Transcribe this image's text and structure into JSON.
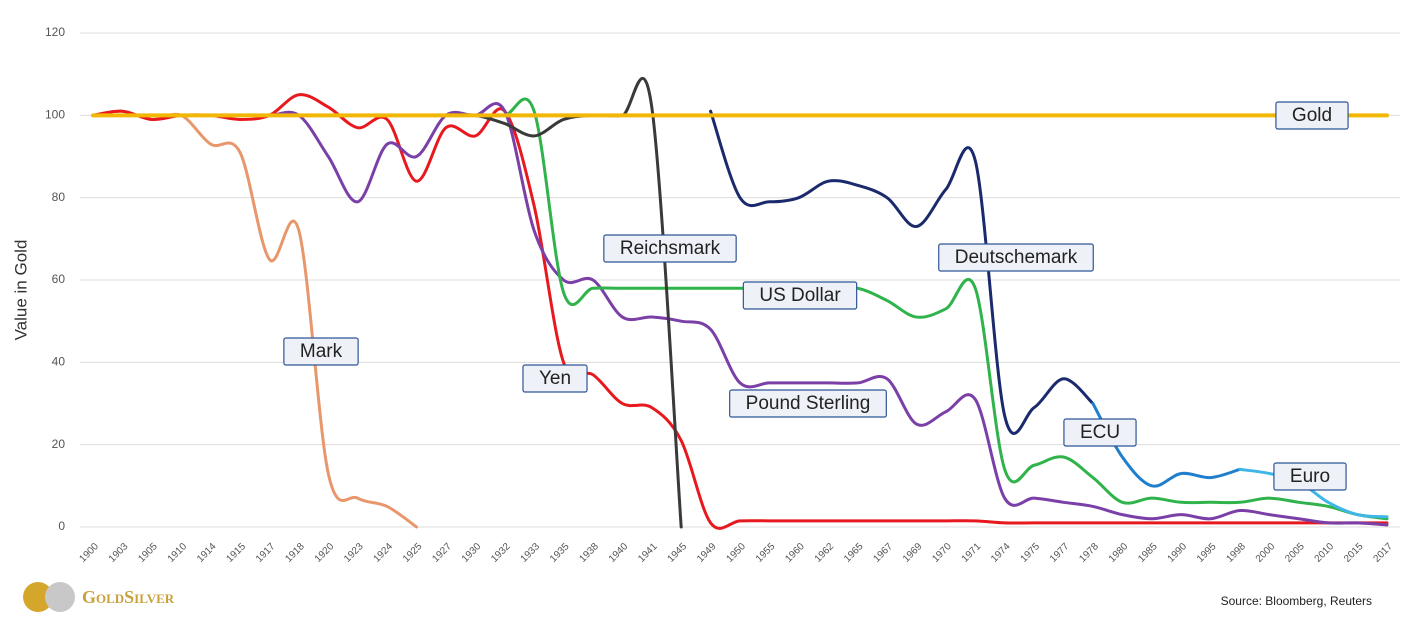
{
  "chart_data": {
    "type": "line",
    "y_label": "Value in Gold",
    "source": "Source: Bloomberg, Reuters",
    "logo": "GoldSilver",
    "categories": [
      "1900",
      "1903",
      "1905",
      "1910",
      "1914",
      "1915",
      "1917",
      "1918",
      "1920",
      "1923",
      "1924",
      "1925",
      "1927",
      "1930",
      "1932",
      "1933",
      "1935",
      "1938",
      "1940",
      "1941",
      "1945",
      "1949",
      "1950",
      "1955",
      "1960",
      "1962",
      "1965",
      "1967",
      "1969",
      "1970",
      "1971",
      "1974",
      "1975",
      "1977",
      "1978",
      "1980",
      "1985",
      "1990",
      "1995",
      "1998",
      "2000",
      "2005",
      "2010",
      "2015",
      "2017"
    ],
    "ylim": [
      0,
      120
    ],
    "yticks": [
      0,
      20,
      40,
      60,
      80,
      100,
      120
    ],
    "grid": true,
    "series": [
      {
        "name": "Gold",
        "color": "#f2b705",
        "values": [
          100,
          100,
          100,
          100,
          100,
          100,
          100,
          100,
          100,
          100,
          100,
          100,
          100,
          100,
          100,
          100,
          100,
          100,
          100,
          100,
          100,
          100,
          100,
          100,
          100,
          100,
          100,
          100,
          100,
          100,
          100,
          100,
          100,
          100,
          100,
          100,
          100,
          100,
          100,
          100,
          100,
          100,
          100,
          100,
          100
        ]
      },
      {
        "name": "Mark",
        "color": "#e8976c",
        "values": [
          100,
          101,
          99,
          100,
          93,
          91,
          65,
          72,
          13,
          7,
          5,
          0,
          null,
          null,
          null,
          null,
          null,
          null,
          null,
          null,
          null,
          null,
          null,
          null,
          null,
          null,
          null,
          null,
          null,
          null,
          null,
          null,
          null,
          null,
          null,
          null,
          null,
          null,
          null,
          null,
          null,
          null,
          null,
          null,
          null
        ]
      },
      {
        "name": "Yen",
        "color": "#e8191e",
        "values": [
          100,
          101,
          99,
          100,
          100,
          99,
          100,
          105,
          102,
          97,
          99,
          84,
          97,
          95,
          101,
          78,
          40,
          37,
          30,
          29,
          21,
          1,
          1.5,
          1.5,
          1.5,
          1.5,
          1.5,
          1.5,
          1.5,
          1.5,
          1.5,
          1,
          1,
          1,
          1,
          1,
          1,
          1,
          1,
          1,
          1,
          1,
          1,
          1,
          1
        ]
      },
      {
        "name": "Pound Sterling",
        "color": "#7b3fa8",
        "values": [
          100,
          100,
          100,
          100,
          100,
          100,
          100,
          100,
          90,
          79,
          93,
          90,
          100,
          100,
          101,
          72,
          60,
          60,
          51,
          51,
          50,
          48,
          35,
          35,
          35,
          35,
          35,
          36,
          25,
          28,
          31,
          7,
          7,
          6,
          5,
          3,
          2,
          3,
          2,
          4,
          3,
          2,
          1,
          1,
          0.5
        ]
      },
      {
        "name": "US Dollar",
        "color": "#2fb34a",
        "values": [
          100,
          100,
          100,
          100,
          100,
          100,
          100,
          100,
          100,
          100,
          100,
          100,
          100,
          100,
          100,
          101,
          57,
          58,
          58,
          58,
          58,
          58,
          58,
          58,
          58,
          58,
          58,
          55,
          51,
          53,
          58,
          14,
          15,
          17,
          12,
          6,
          7,
          6,
          6,
          6,
          7,
          6,
          5,
          3,
          2
        ]
      },
      {
        "name": "Reichsmark",
        "color": "#3a3a3a",
        "values": [
          null,
          null,
          null,
          null,
          null,
          null,
          null,
          null,
          null,
          null,
          null,
          null,
          100,
          100,
          98,
          95,
          99,
          100,
          100,
          102,
          0,
          null,
          null,
          null,
          null,
          null,
          null,
          null,
          null,
          null,
          null,
          null,
          null,
          null,
          null,
          null,
          null,
          null,
          null,
          null,
          null,
          null,
          null,
          null,
          null
        ]
      },
      {
        "name": "Deutschemark",
        "color": "#1a2a6c",
        "values": [
          null,
          null,
          null,
          null,
          null,
          null,
          null,
          null,
          null,
          null,
          null,
          null,
          null,
          null,
          null,
          null,
          null,
          null,
          null,
          null,
          null,
          101,
          80,
          79,
          80,
          84,
          83,
          80,
          73,
          82,
          89,
          27,
          29,
          36,
          30,
          null,
          null,
          null,
          null,
          null,
          null,
          null,
          null,
          null,
          null
        ]
      },
      {
        "name": "ECU",
        "color": "#1f7fcc",
        "values": [
          null,
          null,
          null,
          null,
          null,
          null,
          null,
          null,
          null,
          null,
          null,
          null,
          null,
          null,
          null,
          null,
          null,
          null,
          null,
          null,
          null,
          null,
          null,
          null,
          null,
          null,
          null,
          null,
          null,
          null,
          null,
          null,
          null,
          null,
          30,
          17,
          10,
          13,
          12,
          14,
          null,
          null,
          null,
          null,
          null
        ]
      },
      {
        "name": "Euro",
        "color": "#3fb6e8",
        "values": [
          null,
          null,
          null,
          null,
          null,
          null,
          null,
          null,
          null,
          null,
          null,
          null,
          null,
          null,
          null,
          null,
          null,
          null,
          null,
          null,
          null,
          null,
          null,
          null,
          null,
          null,
          null,
          null,
          null,
          null,
          null,
          null,
          null,
          null,
          null,
          null,
          null,
          null,
          null,
          14,
          13,
          11,
          6,
          3,
          2.5
        ]
      }
    ]
  }
}
